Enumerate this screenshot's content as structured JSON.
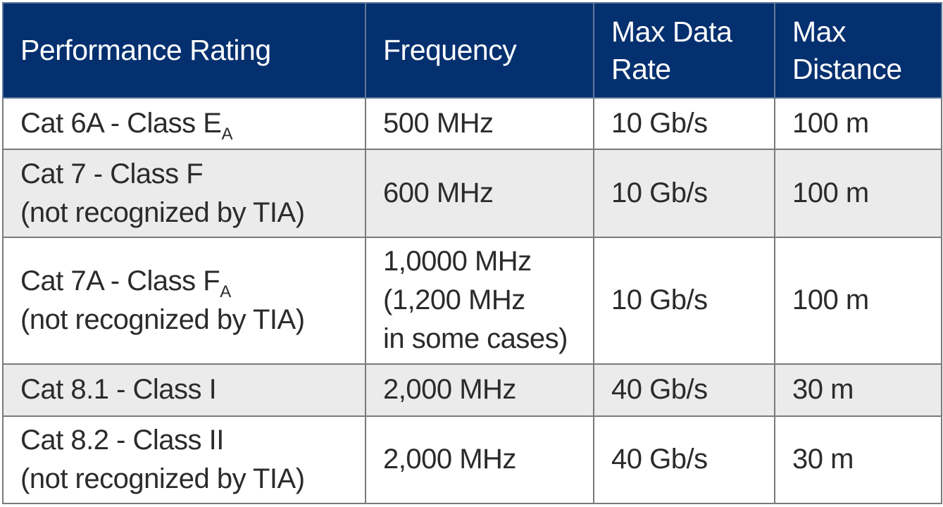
{
  "table": {
    "headers": {
      "rating": "Performance Rating",
      "frequency": "Frequency",
      "rate_line1": "Max Data",
      "rate_line2": "Rate",
      "distance_line1": "Max",
      "distance_line2": "Distance"
    },
    "rows": [
      {
        "rating_line1": "Cat 6A - Class E",
        "rating_sub": "A",
        "frequency": "500 MHz",
        "rate": "10 Gb/s",
        "distance": "100 m"
      },
      {
        "rating_line1": "Cat 7 - Class F",
        "rating_line2": "(not recognized by TIA)",
        "frequency": "600 MHz",
        "rate": "10 Gb/s",
        "distance": "100 m"
      },
      {
        "rating_line1": "Cat 7A - Class F",
        "rating_sub": "A",
        "rating_line2": "(not recognized by TIA)",
        "frequency_line1": "1,0000 MHz",
        "frequency_line2": "(1,200 MHz",
        "frequency_line3": "in some cases)",
        "rate": "10 Gb/s",
        "distance": "100 m"
      },
      {
        "rating_line1": "Cat 8.1 - Class I",
        "frequency": "2,000 MHz",
        "rate": "40 Gb/s",
        "distance": "30 m"
      },
      {
        "rating_line1": "Cat 8.2 - Class II",
        "rating_line2": "(not recognized by TIA)",
        "frequency": "2,000 MHz",
        "rate": "40 Gb/s",
        "distance": "30 m"
      }
    ],
    "colors": {
      "header_bg": "#04306f",
      "header_text": "#ffffff",
      "shaded_row_bg": "#ebebeb",
      "border": "#7a7a7a"
    }
  }
}
